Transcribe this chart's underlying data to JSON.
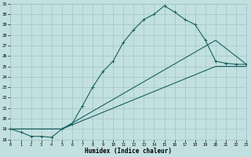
{
  "xlabel": "Humidex (Indice chaleur)",
  "background_color": "#c2e0e0",
  "grid_color": "#9bbfbf",
  "line_color": "#1a6060",
  "xlim": [
    0,
    23
  ],
  "ylim": [
    18,
    31
  ],
  "xticks": [
    0,
    1,
    2,
    3,
    4,
    5,
    6,
    7,
    8,
    9,
    10,
    11,
    12,
    13,
    14,
    15,
    16,
    17,
    18,
    19,
    20,
    21,
    22,
    23
  ],
  "yticks": [
    18,
    19,
    20,
    21,
    22,
    23,
    24,
    25,
    26,
    27,
    28,
    29,
    30,
    31
  ],
  "line1_x": [
    0,
    1,
    2,
    3,
    4,
    5,
    6,
    7,
    8,
    9,
    10,
    11,
    12,
    13,
    14,
    15,
    16,
    17,
    18,
    19,
    20,
    21,
    22,
    23
  ],
  "line1_y": [
    19.0,
    18.7,
    18.3,
    18.3,
    18.2,
    19.0,
    19.5,
    21.2,
    23.0,
    24.5,
    25.5,
    27.3,
    28.5,
    29.5,
    30.0,
    30.8,
    30.2,
    29.5,
    29.0,
    27.5,
    25.5,
    25.3,
    25.2,
    25.2
  ],
  "line2_x": [
    0,
    5,
    20,
    23
  ],
  "line2_y": [
    19.0,
    19.0,
    27.5,
    25.2
  ],
  "line3_x": [
    0,
    5,
    20,
    23
  ],
  "line3_y": [
    19.0,
    19.0,
    25.0,
    25.0
  ],
  "marker_x": [
    0,
    1,
    2,
    3,
    4,
    5,
    6,
    7,
    8,
    9,
    10,
    11,
    12,
    13,
    14,
    15,
    16,
    17,
    18,
    19,
    20,
    21,
    22,
    23
  ],
  "marker_y": [
    19.0,
    18.7,
    18.3,
    18.3,
    18.2,
    19.0,
    19.5,
    21.2,
    23.0,
    24.5,
    25.5,
    27.3,
    28.5,
    29.5,
    30.0,
    30.8,
    30.2,
    29.5,
    29.0,
    27.5,
    25.5,
    25.3,
    25.2,
    25.2
  ]
}
